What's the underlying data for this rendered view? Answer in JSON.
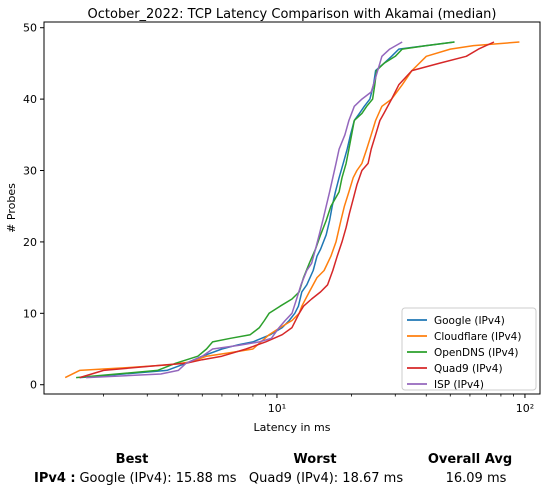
{
  "chart_data": {
    "type": "line",
    "title": "October_2022: TCP Latency Comparison with Akamai (median)",
    "xlabel": "Latency in ms",
    "ylabel": "# Probes",
    "xscale": "log",
    "xlim": [
      1.15,
      115
    ],
    "ylim": [
      -1.3,
      50.8
    ],
    "xticks": [
      10,
      100
    ],
    "xtick_labels": [
      "10¹",
      "10²"
    ],
    "yticks": [
      0,
      10,
      20,
      30,
      40,
      50
    ],
    "grid": false,
    "legend_position": "lower-right",
    "series": [
      {
        "name": "Google (IPv4)",
        "color": "#1f77b4",
        "points": [
          [
            1.6,
            1
          ],
          [
            3.6,
            2
          ],
          [
            4.3,
            3
          ],
          [
            5.0,
            4
          ],
          [
            6.0,
            5
          ],
          [
            7.0,
            5.6
          ],
          [
            8.0,
            6
          ],
          [
            9.4,
            7
          ],
          [
            10.5,
            8
          ],
          [
            11.2,
            9
          ],
          [
            11.8,
            10
          ],
          [
            12.2,
            11
          ],
          [
            12.6,
            13
          ],
          [
            13.2,
            14
          ],
          [
            14.0,
            16
          ],
          [
            14.5,
            18
          ],
          [
            15.0,
            19
          ],
          [
            15.8,
            21
          ],
          [
            16.3,
            23
          ],
          [
            16.7,
            25
          ],
          [
            17.2,
            27
          ],
          [
            17.8,
            29
          ],
          [
            18.5,
            31
          ],
          [
            19.2,
            33
          ],
          [
            19.8,
            35
          ],
          [
            20.5,
            37
          ],
          [
            21.5,
            38
          ],
          [
            22.5,
            39
          ],
          [
            23.7,
            40
          ],
          [
            24.5,
            42
          ],
          [
            25.0,
            44
          ],
          [
            27.0,
            45
          ],
          [
            29.0,
            46
          ],
          [
            31.0,
            47
          ],
          [
            40.0,
            47.5
          ],
          [
            52.0,
            48
          ]
        ]
      },
      {
        "name": "Cloudflare (IPv4)",
        "color": "#ff7f0e",
        "points": [
          [
            1.4,
            1
          ],
          [
            1.6,
            2
          ],
          [
            2.5,
            2.4
          ],
          [
            3.7,
            2.8
          ],
          [
            4.5,
            3.2
          ],
          [
            5.2,
            4
          ],
          [
            6.5,
            4.5
          ],
          [
            8.0,
            5
          ],
          [
            9.3,
            7
          ],
          [
            10.3,
            8
          ],
          [
            11.5,
            9
          ],
          [
            12.3,
            10
          ],
          [
            12.6,
            11
          ],
          [
            13.5,
            13
          ],
          [
            14.5,
            15
          ],
          [
            15.5,
            16
          ],
          [
            16.5,
            18
          ],
          [
            17.3,
            20
          ],
          [
            18.1,
            23
          ],
          [
            18.7,
            25
          ],
          [
            19.5,
            27
          ],
          [
            20.3,
            29
          ],
          [
            21.0,
            30
          ],
          [
            22.0,
            31
          ],
          [
            23.0,
            33
          ],
          [
            24.0,
            35
          ],
          [
            25.0,
            37
          ],
          [
            26.5,
            39
          ],
          [
            29.0,
            40
          ],
          [
            32.0,
            42
          ],
          [
            35.0,
            44
          ],
          [
            40.0,
            46
          ],
          [
            50.0,
            47
          ],
          [
            62.0,
            47.5
          ],
          [
            95.0,
            48
          ]
        ]
      },
      {
        "name": "OpenDNS (IPv4)",
        "color": "#2ca02c",
        "points": [
          [
            1.55,
            1
          ],
          [
            3.3,
            2
          ],
          [
            3.9,
            3
          ],
          [
            4.8,
            4
          ],
          [
            5.2,
            5
          ],
          [
            5.5,
            6
          ],
          [
            6.5,
            6.5
          ],
          [
            7.8,
            7
          ],
          [
            8.5,
            8
          ],
          [
            8.9,
            9
          ],
          [
            9.3,
            10
          ],
          [
            10.3,
            11
          ],
          [
            11.5,
            12
          ],
          [
            12.3,
            13
          ],
          [
            12.8,
            15
          ],
          [
            13.5,
            17
          ],
          [
            14.3,
            19
          ],
          [
            15.0,
            21
          ],
          [
            15.8,
            23
          ],
          [
            16.5,
            25
          ],
          [
            17.8,
            27
          ],
          [
            18.3,
            29
          ],
          [
            19.0,
            31
          ],
          [
            19.5,
            33
          ],
          [
            20.0,
            35
          ],
          [
            20.5,
            37
          ],
          [
            22.0,
            38
          ],
          [
            23.0,
            39
          ],
          [
            24.3,
            40
          ],
          [
            24.8,
            42
          ],
          [
            25.2,
            44
          ],
          [
            27.0,
            45
          ],
          [
            30.0,
            46
          ],
          [
            32.0,
            47
          ],
          [
            40.0,
            47.5
          ],
          [
            52.0,
            48
          ]
        ]
      },
      {
        "name": "Quad9 (IPv4)",
        "color": "#d62728",
        "points": [
          [
            1.6,
            1
          ],
          [
            2.0,
            2
          ],
          [
            3.6,
            2.8
          ],
          [
            4.3,
            3
          ],
          [
            5.0,
            3.5
          ],
          [
            6.0,
            4
          ],
          [
            7.5,
            5
          ],
          [
            9.0,
            6
          ],
          [
            10.5,
            7
          ],
          [
            11.5,
            8
          ],
          [
            12.3,
            10
          ],
          [
            12.8,
            11
          ],
          [
            13.8,
            12
          ],
          [
            15.0,
            13
          ],
          [
            16.0,
            14
          ],
          [
            16.8,
            16
          ],
          [
            17.5,
            18
          ],
          [
            18.3,
            20
          ],
          [
            19.0,
            22
          ],
          [
            19.6,
            24
          ],
          [
            20.3,
            26
          ],
          [
            21.0,
            28
          ],
          [
            22.0,
            30
          ],
          [
            23.3,
            31
          ],
          [
            24.0,
            33
          ],
          [
            25.0,
            35
          ],
          [
            26.0,
            37
          ],
          [
            27.0,
            38
          ],
          [
            29.0,
            40
          ],
          [
            31.0,
            42
          ],
          [
            35.0,
            44
          ],
          [
            45.0,
            45
          ],
          [
            58.0,
            46
          ],
          [
            65.0,
            47
          ],
          [
            75.0,
            48
          ]
        ]
      },
      {
        "name": "ISP (IPv4)",
        "color": "#9467bd",
        "points": [
          [
            1.7,
            1
          ],
          [
            3.4,
            1.5
          ],
          [
            4.0,
            2
          ],
          [
            4.3,
            3
          ],
          [
            5.0,
            4
          ],
          [
            5.5,
            5
          ],
          [
            7.0,
            5.5
          ],
          [
            8.5,
            6
          ],
          [
            9.5,
            6.5
          ],
          [
            10.2,
            8
          ],
          [
            10.8,
            9
          ],
          [
            11.5,
            10
          ],
          [
            12.0,
            12
          ],
          [
            12.5,
            14
          ],
          [
            13.2,
            16
          ],
          [
            13.8,
            17
          ],
          [
            14.3,
            19
          ],
          [
            14.8,
            21
          ],
          [
            15.3,
            23
          ],
          [
            15.8,
            25
          ],
          [
            16.3,
            27
          ],
          [
            16.8,
            29
          ],
          [
            17.3,
            31
          ],
          [
            17.8,
            33
          ],
          [
            18.8,
            35
          ],
          [
            19.5,
            37
          ],
          [
            20.5,
            39
          ],
          [
            22.0,
            40
          ],
          [
            24.0,
            41
          ],
          [
            25.0,
            43
          ],
          [
            26.5,
            46
          ],
          [
            28.5,
            47
          ],
          [
            32.0,
            48
          ]
        ]
      }
    ]
  },
  "summary": {
    "headers": {
      "best": "Best",
      "worst": "Worst",
      "avg": "Overall Avg"
    },
    "row_label": "IPv4 :",
    "best": "Google (IPv4): 15.88 ms",
    "worst": "Quad9 (IPv4): 18.67 ms",
    "avg": "16.09 ms"
  }
}
